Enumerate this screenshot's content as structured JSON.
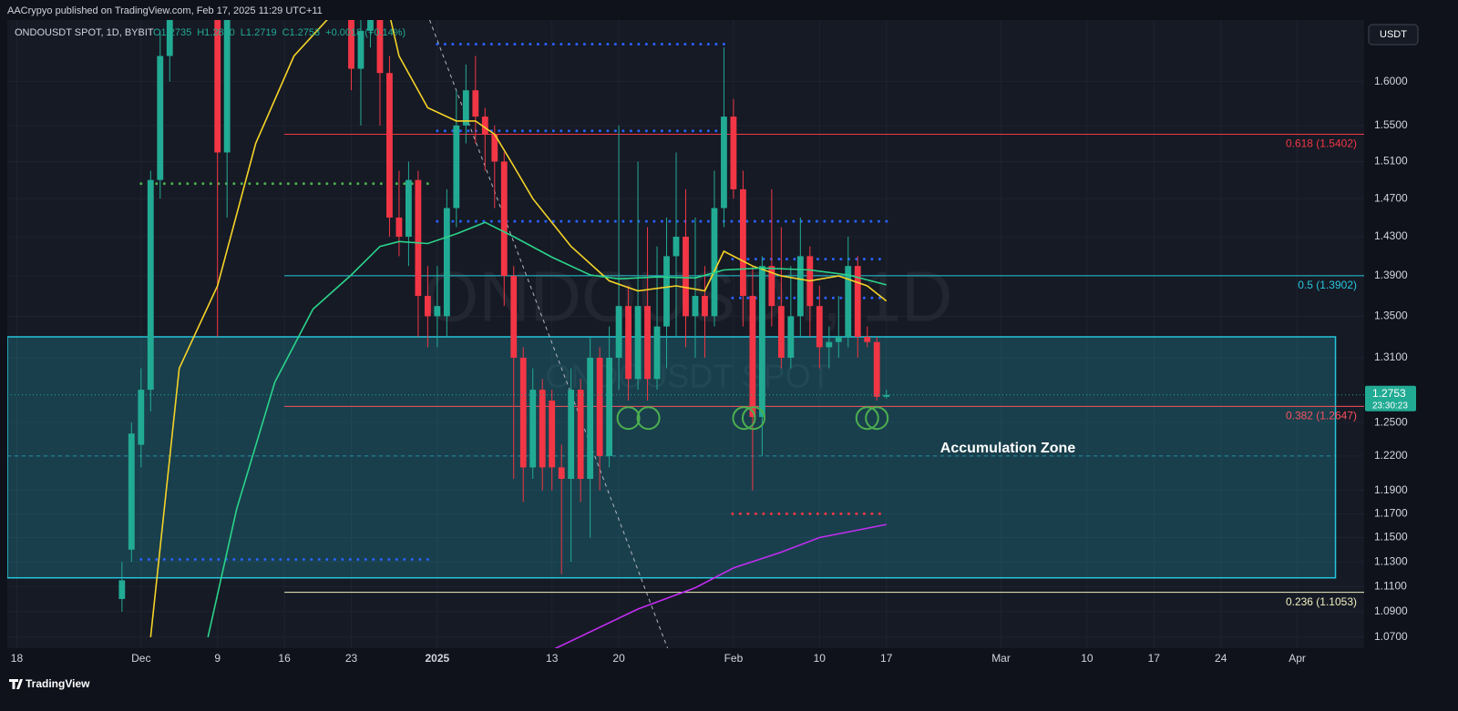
{
  "header": {
    "publisher": "AACrypyo published on TradingView.com, Feb 17, 2025 11:29 UTC+11",
    "symbol": "ONDOUSDT SPOT, 1D, BYBIT",
    "ohlc": [
      "O1.2735",
      "H1.2800",
      "L1.2719",
      "C1.2753",
      "+0.0018 (+0.14%)"
    ],
    "currency": "USDT",
    "brand": "TradingView"
  },
  "chart_data": {
    "type": "candlestick",
    "watermark": "ONDOUSDT, 1D",
    "watermark_sub": "ONDOUSDT SPOT",
    "countdown": "23:30:23",
    "log_scale": true,
    "up_color": "#22ab94",
    "down_color": "#f23645",
    "xlim": [
      -1,
      141
    ],
    "xticks": [
      {
        "value": 0,
        "label": "18"
      },
      {
        "value": 13,
        "label": "Dec"
      },
      {
        "value": 21,
        "label": "9"
      },
      {
        "value": 28,
        "label": "16"
      },
      {
        "value": 35,
        "label": "23"
      },
      {
        "value": 44,
        "label": "2025"
      },
      {
        "value": 56,
        "label": "13"
      },
      {
        "value": 63,
        "label": "20"
      },
      {
        "value": 75,
        "label": "Feb"
      },
      {
        "value": 84,
        "label": "10"
      },
      {
        "value": 91,
        "label": "17"
      },
      {
        "value": 103,
        "label": "Mar"
      },
      {
        "value": 112,
        "label": "10"
      },
      {
        "value": 119,
        "label": "17"
      },
      {
        "value": 126,
        "label": "24"
      },
      {
        "value": 134,
        "label": "Apr"
      }
    ],
    "ylim": [
      1.0615,
      1.673
    ],
    "yticks": [
      {
        "value": 1.6,
        "label": "1.6000"
      },
      {
        "value": 1.55,
        "label": "1.5500"
      },
      {
        "value": 1.51,
        "label": "1.5100"
      },
      {
        "value": 1.47,
        "label": "1.4700"
      },
      {
        "value": 1.43,
        "label": "1.4300"
      },
      {
        "value": 1.39,
        "label": "1.3900"
      },
      {
        "value": 1.35,
        "label": "1.3500"
      },
      {
        "value": 1.31,
        "label": "1.3100"
      },
      {
        "value": 1.25,
        "label": "1.2500"
      },
      {
        "value": 1.22,
        "label": "1.2200"
      },
      {
        "value": 1.19,
        "label": "1.1900"
      },
      {
        "value": 1.17,
        "label": "1.1700"
      },
      {
        "value": 1.15,
        "label": "1.1500"
      },
      {
        "value": 1.13,
        "label": "1.1300"
      },
      {
        "value": 1.11,
        "label": "1.1100"
      },
      {
        "value": 1.09,
        "label": "1.0900"
      },
      {
        "value": 1.07,
        "label": "1.0700"
      }
    ],
    "grid": true,
    "x": [
      11,
      12,
      13,
      14,
      15,
      16,
      21,
      22,
      35,
      36,
      37,
      38,
      39,
      40,
      41,
      42,
      43,
      44,
      45,
      46,
      47,
      48,
      49,
      50,
      51,
      52,
      53,
      54,
      55,
      56,
      57,
      58,
      59,
      60,
      61,
      62,
      63,
      64,
      65,
      66,
      67,
      68,
      69,
      70,
      71,
      72,
      73,
      74,
      75,
      76,
      77,
      78,
      79,
      80,
      81,
      82,
      83,
      84,
      85,
      86,
      87,
      88,
      89,
      90,
      91
    ],
    "open": [
      1.1,
      1.14,
      1.23,
      1.28,
      1.49,
      1.63,
      1.7,
      1.52,
      1.7,
      1.615,
      1.66,
      1.7,
      1.61,
      1.45,
      1.43,
      1.49,
      1.37,
      1.35,
      1.35,
      1.46,
      1.55,
      1.59,
      1.56,
      1.54,
      1.51,
      1.39,
      1.31,
      1.21,
      1.28,
      1.27,
      1.21,
      1.2,
      1.28,
      1.2,
      1.31,
      1.22,
      1.31,
      1.36,
      1.29,
      1.36,
      1.29,
      1.34,
      1.41,
      1.43,
      1.35,
      1.37,
      1.35,
      1.46,
      1.56,
      1.48,
      1.37,
      1.255,
      1.4,
      1.36,
      1.31,
      1.35,
      1.41,
      1.36,
      1.32,
      1.325,
      1.33,
      1.4,
      1.33,
      1.325,
      1.2735
    ],
    "high": [
      1.13,
      1.25,
      1.3,
      1.5,
      1.66,
      1.72,
      1.72,
      1.72,
      1.72,
      1.7,
      1.72,
      1.72,
      1.63,
      1.5,
      1.51,
      1.5,
      1.4,
      1.4,
      1.48,
      1.59,
      1.62,
      1.63,
      1.57,
      1.55,
      1.52,
      1.4,
      1.32,
      1.3,
      1.29,
      1.28,
      1.23,
      1.3,
      1.29,
      1.33,
      1.32,
      1.34,
      1.55,
      1.38,
      1.51,
      1.44,
      1.42,
      1.45,
      1.52,
      1.48,
      1.45,
      1.4,
      1.5,
      1.64,
      1.58,
      1.5,
      1.4,
      1.41,
      1.48,
      1.44,
      1.4,
      1.45,
      1.42,
      1.38,
      1.34,
      1.37,
      1.43,
      1.41,
      1.34,
      1.33,
      1.28
    ],
    "low": [
      1.09,
      1.13,
      1.21,
      1.26,
      1.47,
      1.6,
      1.33,
      1.45,
      1.59,
      1.55,
      1.64,
      1.55,
      1.43,
      1.41,
      1.4,
      1.33,
      1.32,
      1.32,
      1.33,
      1.44,
      1.53,
      1.53,
      1.5,
      1.46,
      1.36,
      1.2,
      1.18,
      1.2,
      1.19,
      1.19,
      1.12,
      1.13,
      1.18,
      1.15,
      1.19,
      1.21,
      1.28,
      1.27,
      1.28,
      1.27,
      1.28,
      1.3,
      1.33,
      1.32,
      1.31,
      1.31,
      1.34,
      1.44,
      1.47,
      1.34,
      1.19,
      1.22,
      1.34,
      1.3,
      1.3,
      1.33,
      1.33,
      1.3,
      1.3,
      1.31,
      1.32,
      1.31,
      1.32,
      1.27,
      1.2719
    ],
    "close": [
      1.115,
      1.24,
      1.28,
      1.49,
      1.63,
      1.7,
      1.52,
      1.7,
      1.615,
      1.66,
      1.7,
      1.61,
      1.45,
      1.43,
      1.49,
      1.37,
      1.35,
      1.36,
      1.46,
      1.55,
      1.59,
      1.56,
      1.54,
      1.51,
      1.39,
      1.31,
      1.21,
      1.28,
      1.21,
      1.21,
      1.2,
      1.28,
      1.2,
      1.31,
      1.22,
      1.31,
      1.36,
      1.29,
      1.36,
      1.29,
      1.34,
      1.41,
      1.43,
      1.35,
      1.37,
      1.35,
      1.46,
      1.56,
      1.48,
      1.37,
      1.255,
      1.4,
      1.36,
      1.31,
      1.35,
      1.41,
      1.36,
      1.32,
      1.325,
      1.33,
      1.4,
      1.33,
      1.325,
      1.2735,
      1.2753
    ],
    "lines": [
      {
        "color": "#f5d327",
        "x": [
          14,
          17,
          21,
          25,
          29,
          33,
          39,
          40,
          43,
          46,
          48,
          50,
          52,
          54,
          58,
          62,
          65,
          69,
          72,
          74,
          77,
          80,
          83,
          86,
          89,
          91
        ],
        "values": [
          1.07,
          1.3,
          1.38,
          1.53,
          1.63,
          1.68,
          1.68,
          1.63,
          1.57,
          1.555,
          1.555,
          1.54,
          1.505,
          1.47,
          1.42,
          1.385,
          1.375,
          1.38,
          1.375,
          1.415,
          1.4,
          1.39,
          1.385,
          1.39,
          1.38,
          1.365
        ]
      },
      {
        "color": "#2bd48a",
        "x": [
          20,
          23,
          27,
          31,
          35,
          38,
          40,
          43,
          46,
          49,
          52,
          56,
          60,
          63,
          67,
          71,
          74,
          78,
          83,
          87,
          91
        ],
        "values": [
          1.07,
          1.174,
          1.287,
          1.357,
          1.391,
          1.42,
          1.425,
          1.423,
          1.433,
          1.445,
          1.43,
          1.409,
          1.391,
          1.387,
          1.389,
          1.388,
          1.396,
          1.398,
          1.396,
          1.391,
          1.381
        ]
      },
      {
        "color": "#c22df0",
        "x": [
          56,
          65,
          71,
          75,
          80,
          84,
          91
        ],
        "values": [
          1.06,
          1.092,
          1.109,
          1.125,
          1.138,
          1.15,
          1.161
        ]
      }
    ],
    "fib": [
      {
        "label": "0.618 (1.5402)",
        "value": 1.5402,
        "color": "#f23645"
      },
      {
        "label": "0.5 (1.3902)",
        "value": 1.3902,
        "color": "#26c6da"
      },
      {
        "label": "0.382 (1.2647)",
        "value": 1.2647,
        "color": "#f7525f"
      },
      {
        "label": "0.236 (1.1053)",
        "value": 1.1053,
        "color": "#f0f0c0"
      }
    ],
    "fib_from": 28,
    "zone": {
      "label": "Accumulation Zone",
      "top": 1.33,
      "bottom": 1.117,
      "from": -1,
      "to": 138,
      "mid": 1.22,
      "color": "#26c6da"
    },
    "levels": [
      {
        "value": 1.644,
        "from": 44,
        "to": 74,
        "color": "#2962ff"
      },
      {
        "value": 1.544,
        "from": 44,
        "to": 74,
        "color": "#2962ff"
      },
      {
        "value": 1.446,
        "from": 44,
        "to": 91.4,
        "color": "#2962ff"
      },
      {
        "value": 1.407,
        "from": 74.9,
        "to": 91.1,
        "color": "#2962ff"
      },
      {
        "value": 1.368,
        "from": 74.9,
        "to": 91.1,
        "color": "#2962ff"
      },
      {
        "value": 1.486,
        "from": 13,
        "to": 43.2,
        "color": "#4caf50"
      },
      {
        "value": 1.132,
        "from": 13,
        "to": 43.2,
        "color": "#2962ff"
      },
      {
        "value": 1.17,
        "from": 74.9,
        "to": 91.1,
        "color": "#f23645"
      }
    ],
    "trendline": {
      "x": [
        43.2,
        68.1
      ],
      "values": [
        1.673,
        1.0615
      ]
    },
    "markers": {
      "color": "#4caf50",
      "x": [
        64.0,
        66.1,
        76.1,
        77.1,
        89.0,
        90.0
      ],
      "values": [
        1.254,
        1.254,
        1.254,
        1.254,
        1.254,
        1.254
      ]
    }
  }
}
